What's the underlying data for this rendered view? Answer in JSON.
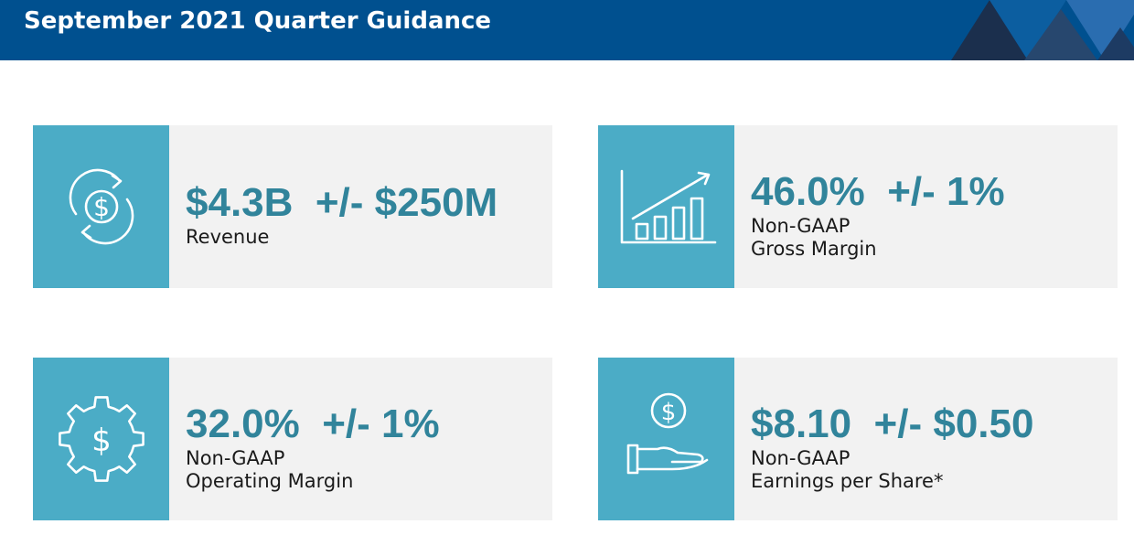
{
  "header": {
    "title": "September 2021 Quarter Guidance",
    "background": "#00508f"
  },
  "colors": {
    "accent": "#31849b",
    "icon_tile": "#4bacc6",
    "card_bg": "#f2f2f2"
  },
  "cards": [
    {
      "icon": "dollar-cycle-icon",
      "figure": "$4.3B  +/- $250M",
      "label_line1": "Revenue",
      "label_line2": ""
    },
    {
      "icon": "bar-chart-growth-icon",
      "figure": "46.0%  +/- 1%",
      "label_line1": "Non-GAAP",
      "label_line2": "Gross Margin"
    },
    {
      "icon": "dollar-gear-icon",
      "figure": "32.0%  +/- 1%",
      "label_line1": "Non-GAAP",
      "label_line2": "Operating Margin"
    },
    {
      "icon": "hand-dollar-icon",
      "figure": "$8.10  +/- $0.50",
      "label_line1": "Non-GAAP",
      "label_line2": "Earnings per Share*"
    }
  ]
}
